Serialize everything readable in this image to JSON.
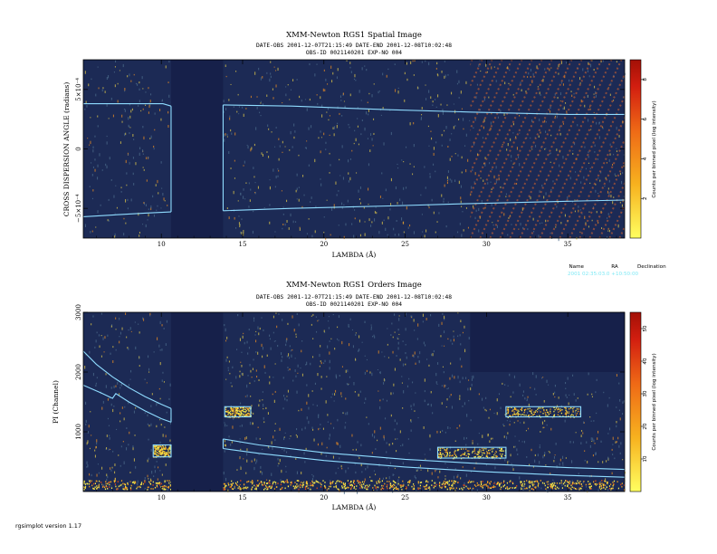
{
  "colors": {
    "background": "#1c2a55",
    "contour": "#8fdcff",
    "cmap": [
      "#ffff60",
      "#f7b21f",
      "#ef6a16",
      "#d21e10",
      "#a31006"
    ],
    "source_info": "#7fe9f5"
  },
  "source_info": {
    "name_label": "Name",
    "ra_label": "RA",
    "dec_label": "Declination",
    "values": "2001 02:35:03.0 +10:50:00"
  },
  "footer": "rgsimplot version 1.17",
  "chart_data": [
    {
      "type": "heatmap",
      "title": "XMM-Newton  RGS1 Spatial Image",
      "subtitle_line1": "DATE-OBS 2001-12-07T21:15:49   DATE-END 2001-12-08T10:02:48",
      "subtitle_line2": "OBS-ID 0021140201  EXP-NO 004",
      "xlabel": "LAMBDA (Å)",
      "ylabel": "CROSS DISPERSION ANGLE (radians)",
      "xlim": [
        5.2,
        38.5
      ],
      "ylim": [
        -0.00075,
        0.00075
      ],
      "xticks": [
        10,
        15,
        20,
        25,
        30,
        35
      ],
      "xtick_labels": [
        "10",
        "15",
        "20",
        "25",
        "30",
        "35"
      ],
      "yticks": [
        -0.0005,
        0,
        0.0005
      ],
      "ytick_labels": [
        "−5×10⁻⁴",
        "0",
        "5×10⁻⁴"
      ],
      "colorbar": {
        "label": "Counts per binned pixel (log intensity)",
        "range": [
          0,
          9
        ],
        "ticks": [
          2,
          4,
          6,
          8
        ],
        "tick_labels": [
          "2",
          "4",
          "6",
          "8"
        ]
      },
      "chip_gap": [
        10.6,
        13.8
      ],
      "extraction_region": {
        "left_upper_x": [
          5.2,
          10.1,
          10.6
        ],
        "left_upper_y": [
          0.00038,
          0.00038,
          0.00036
        ],
        "left_lower_x": [
          5.2,
          9.0,
          10.6
        ],
        "left_lower_y": [
          -0.00057,
          -0.00054,
          -0.00053
        ],
        "right_upper_x": [
          13.8,
          18,
          24,
          29,
          35,
          38.5
        ],
        "right_upper_y": [
          0.00037,
          0.00036,
          0.00033,
          0.00031,
          0.00029,
          0.00029
        ],
        "right_lower_x": [
          13.8,
          18,
          24,
          29,
          35,
          38.5
        ],
        "right_lower_y": [
          -0.00052,
          -0.0005,
          -0.00048,
          -0.00046,
          -0.00044,
          -0.00043
        ]
      }
    },
    {
      "type": "heatmap",
      "title": "XMM-Newton  RGS1 Orders Image",
      "subtitle_line1": "DATE-OBS 2001-12-07T21:15:49   DATE-END 2001-12-08T10:02:48",
      "subtitle_line2": "OBS-ID 0021140201  EXP-NO 004",
      "xlabel": "LAMBDA (Å)",
      "ylabel": "PI (Channel)",
      "xlim": [
        5.2,
        38.5
      ],
      "ylim": [
        0,
        3000
      ],
      "xticks": [
        10,
        15,
        20,
        25,
        30,
        35
      ],
      "xtick_labels": [
        "10",
        "15",
        "20",
        "25",
        "30",
        "35"
      ],
      "yticks": [
        1000,
        2000,
        3000
      ],
      "ytick_labels": [
        "1000",
        "2000",
        "3000"
      ],
      "colorbar": {
        "label": "Counts per binned pixel (log intensity)",
        "range": [
          0,
          55
        ],
        "ticks": [
          10,
          20,
          30,
          40,
          50
        ],
        "tick_labels": [
          "10",
          "20",
          "30",
          "40",
          "50"
        ]
      },
      "chip_gap": [
        10.6,
        13.8
      ],
      "boxes": [
        {
          "x": [
            9.5,
            10.6
          ],
          "y": [
            580,
            780
          ]
        },
        {
          "x": [
            13.9,
            15.5
          ],
          "y": [
            1250,
            1420
          ]
        },
        {
          "x": [
            27.0,
            31.2
          ],
          "y": [
            560,
            740
          ]
        },
        {
          "x": [
            31.2,
            35.8
          ],
          "y": [
            1250,
            1420
          ]
        }
      ],
      "order_curves": [
        {
          "x": [
            5.2,
            6,
            7,
            8,
            9,
            10,
            10.6
          ],
          "y": [
            2350,
            2130,
            1920,
            1740,
            1590,
            1460,
            1390
          ]
        },
        {
          "x": [
            5.2,
            6.3,
            7.0,
            7.2,
            8,
            9,
            10,
            10.6
          ],
          "y": [
            1780,
            1650,
            1560,
            1640,
            1500,
            1350,
            1220,
            1160
          ]
        },
        {
          "x": [
            13.8,
            16,
            20,
            25,
            30,
            35,
            38.5
          ],
          "y": [
            880,
            780,
            650,
            540,
            460,
            400,
            370
          ]
        },
        {
          "x": [
            13.8,
            16,
            20,
            25,
            30,
            35,
            38.5
          ],
          "y": [
            720,
            640,
            520,
            410,
            330,
            270,
            240
          ]
        }
      ],
      "bright_band_pi": 120,
      "empty_region": {
        "x": [
          29,
          38.5
        ],
        "y": [
          2000,
          3000
        ]
      }
    }
  ]
}
